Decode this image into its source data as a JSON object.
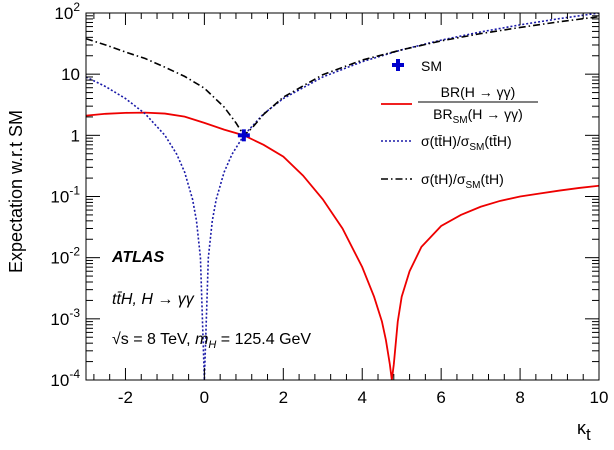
{
  "chart_data": {
    "type": "line",
    "xlabel": "κ",
    "xlabel_sub": "t",
    "ylabel": "Expectation w.r.t SM",
    "xlim": [
      -3,
      10
    ],
    "ylim": [
      0.0001,
      100
    ],
    "yscale": "log",
    "x_ticks": [
      -2,
      0,
      2,
      4,
      6,
      8,
      10
    ],
    "x_tick_labels": [
      "-2",
      "0",
      "2",
      "4",
      "6",
      "8",
      "10"
    ],
    "y_ticks": [
      0.0001,
      0.001,
      0.01,
      0.1,
      1,
      10,
      100
    ],
    "y_tick_labels": [
      {
        "base": "10",
        "exp": "-4"
      },
      {
        "base": "10",
        "exp": "-3"
      },
      {
        "base": "10",
        "exp": "-2"
      },
      {
        "base": "10",
        "exp": "-1"
      },
      {
        "base": "1",
        "exp": ""
      },
      {
        "base": "10",
        "exp": ""
      },
      {
        "base": "10",
        "exp": "2"
      }
    ],
    "legend": {
      "position": "top-right",
      "sm": "SM",
      "br_num": "BR(H → γγ)",
      "br_den_prefix": "BR",
      "br_den_sub": "SM",
      "br_den_rest": "(H → γγ)",
      "tth": "σ(tt̄H)/σ",
      "tth_sub": "SM",
      "tth_rest": "(tt̄H)",
      "th": "σ(tH)/σ",
      "th_sub": "SM",
      "th_rest": "(tH)"
    },
    "annotations": {
      "atlas": "ATLAS",
      "process": "tt̄H, H → γγ",
      "sqrt_s": "√s = 8 TeV,",
      "mass_m": "m",
      "mass_sub": "H",
      "mass_rest": "= 125.4 GeV"
    },
    "series": [
      {
        "key": "br",
        "color": "#ee0000",
        "dash": "none",
        "x": [
          -3,
          -2.5,
          -2,
          -1.5,
          -1,
          -0.5,
          0,
          0.5,
          1,
          1.5,
          2,
          2.5,
          3,
          3.5,
          4,
          4.3,
          4.5,
          4.6,
          4.7,
          4.75,
          4.8,
          4.9,
          5.0,
          5.2,
          5.5,
          6,
          6.5,
          7,
          7.5,
          8,
          8.5,
          9,
          9.5,
          10
        ],
        "y": [
          2.1,
          2.25,
          2.33,
          2.35,
          2.27,
          2.02,
          1.6,
          1.24,
          1.0,
          0.7,
          0.45,
          0.22,
          0.09,
          0.03,
          0.007,
          0.0023,
          0.0009,
          0.00045,
          0.00018,
          0.0001,
          0.00018,
          0.0009,
          0.0023,
          0.006,
          0.015,
          0.033,
          0.05,
          0.068,
          0.085,
          0.1,
          0.112,
          0.125,
          0.138,
          0.15
        ]
      },
      {
        "key": "tth",
        "color": "#1a1aa8",
        "dash": "2,2",
        "x": [
          -3,
          -2.5,
          -2,
          -1.5,
          -1,
          -0.7,
          -0.5,
          -0.3,
          -0.2,
          -0.1,
          0,
          0.1,
          0.2,
          0.3,
          0.5,
          0.7,
          1,
          1.5,
          2,
          3,
          4,
          5,
          6,
          7,
          8,
          9,
          10
        ],
        "y": [
          9,
          6.25,
          4,
          2.25,
          1,
          0.49,
          0.25,
          0.09,
          0.04,
          0.01,
          0.0001,
          0.01,
          0.04,
          0.09,
          0.25,
          0.49,
          1,
          2.25,
          4,
          9,
          16,
          25,
          36,
          49,
          64,
          81,
          100
        ]
      },
      {
        "key": "th",
        "color": "#000000",
        "dash": "7,3,1.5,3",
        "x": [
          -3,
          -2.5,
          -2,
          -1.5,
          -1,
          -0.5,
          0,
          0.5,
          0.8,
          1,
          1.2,
          1.5,
          2,
          3,
          4,
          5,
          6,
          7,
          8,
          9,
          10
        ],
        "y": [
          38,
          30,
          23,
          18,
          13,
          9.2,
          5.9,
          2.9,
          1.6,
          1.0,
          1.3,
          2.2,
          4.2,
          9.8,
          17,
          25,
          35,
          46,
          58,
          72,
          87
        ]
      }
    ],
    "sm_point": {
      "x": 1,
      "y": 1,
      "color": "#0000cc"
    }
  }
}
